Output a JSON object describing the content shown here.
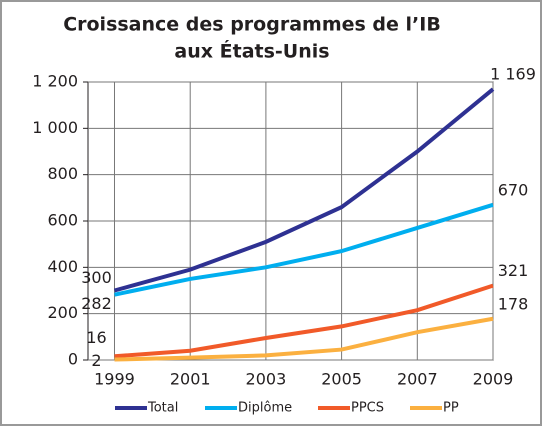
{
  "chart_data": {
    "type": "line",
    "title": [
      "Croissance des programmes de l’IB",
      "aux États-Unis"
    ],
    "x": [
      1999,
      2001,
      2003,
      2005,
      2007,
      2009
    ],
    "xlim": [
      1998.3,
      2009
    ],
    "xticks": [
      1999,
      2001,
      2003,
      2005,
      2007,
      2009
    ],
    "ylim": [
      0,
      1200
    ],
    "yticks": [
      0,
      200,
      400,
      600,
      800,
      {
        "value": 1000,
        "label": "1 000"
      },
      {
        "value": 1200,
        "label": "1 200"
      }
    ],
    "grid": true,
    "legend": "bottom",
    "series": [
      {
        "name": "Total",
        "color": "#2e3192",
        "values": [
          300,
          390,
          510,
          660,
          900,
          1169
        ],
        "value_labels": [
          "300",
          null,
          null,
          null,
          null,
          "1 169"
        ]
      },
      {
        "name": "Diplôme",
        "color": "#00aeef",
        "values": [
          282,
          350,
          400,
          470,
          570,
          670
        ],
        "value_labels": [
          "282",
          null,
          null,
          null,
          null,
          "670"
        ]
      },
      {
        "name": "PPCS",
        "color": "#f15a29",
        "values": [
          16,
          40,
          95,
          145,
          215,
          321
        ],
        "value_labels": [
          "16",
          null,
          null,
          null,
          null,
          "321"
        ]
      },
      {
        "name": "PP",
        "color": "#fbb040",
        "values": [
          2,
          10,
          20,
          45,
          120,
          178
        ],
        "value_labels": [
          "2",
          null,
          null,
          null,
          null,
          "178"
        ]
      }
    ]
  }
}
